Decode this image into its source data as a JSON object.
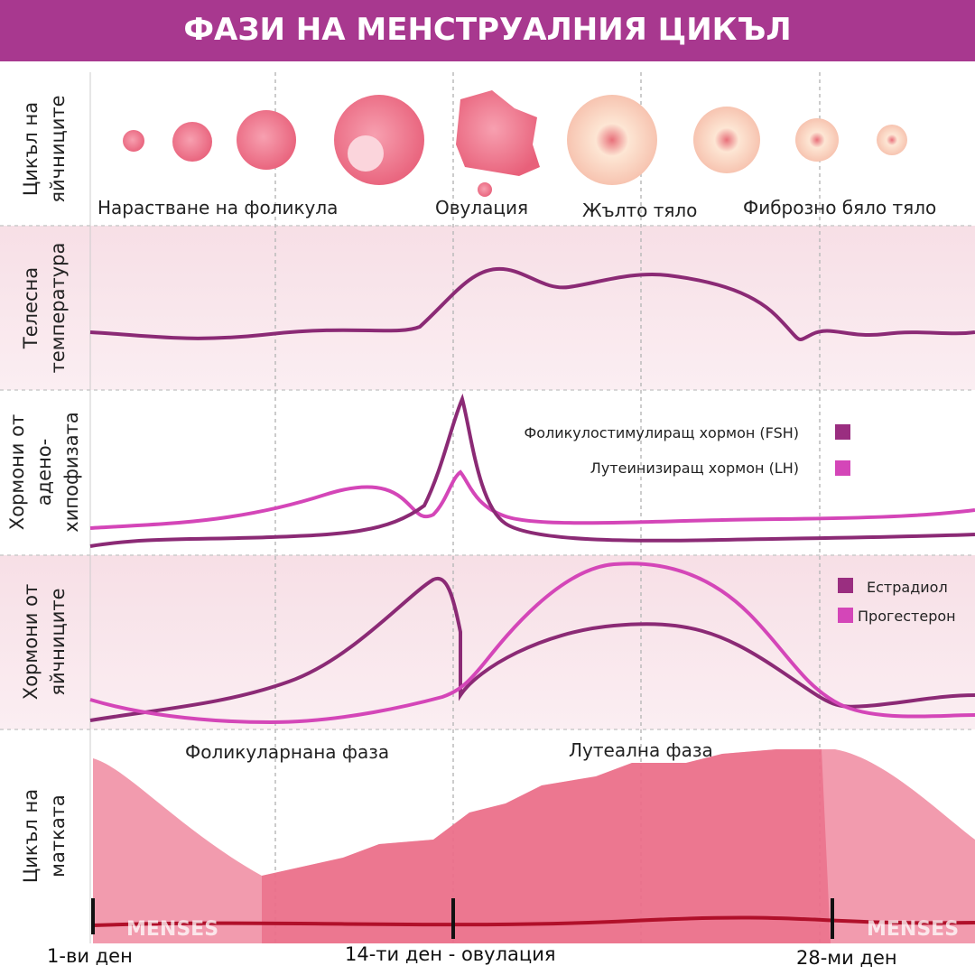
{
  "header": {
    "title": "ФАЗИ НА МЕНСТРУАЛНИЯ ЦИКЪЛ"
  },
  "rows": [
    {
      "label": [
        "Цикъл на",
        "яйчниците"
      ]
    },
    {
      "label": [
        "Телесна",
        "температура"
      ]
    },
    {
      "label": [
        "Хормони от",
        "адено-",
        "хипофизата"
      ]
    },
    {
      "label": [
        "Хормони от",
        "яйчниците"
      ]
    },
    {
      "label": [
        "Цикъл на",
        "матката"
      ]
    }
  ],
  "ovary_stages": [
    "Нарастване на фоликула",
    "Овулация",
    "Жълто тяло",
    "Фиброзно бяло тяло"
  ],
  "pituitary_legend": [
    "Фоликулостимулиращ хормон (FSH)",
    "Лутеинизиращ хормон (LH)"
  ],
  "ovarian_legend": [
    "Естрадиол",
    "Прогестерон"
  ],
  "phases": [
    "Фоликуларнана фаза",
    "Лутеална фаза"
  ],
  "menses": [
    "MENSES",
    "MENSES"
  ],
  "days": [
    "1-ви ден",
    "14-ти ден - овулация",
    "28-ми ден"
  ]
}
